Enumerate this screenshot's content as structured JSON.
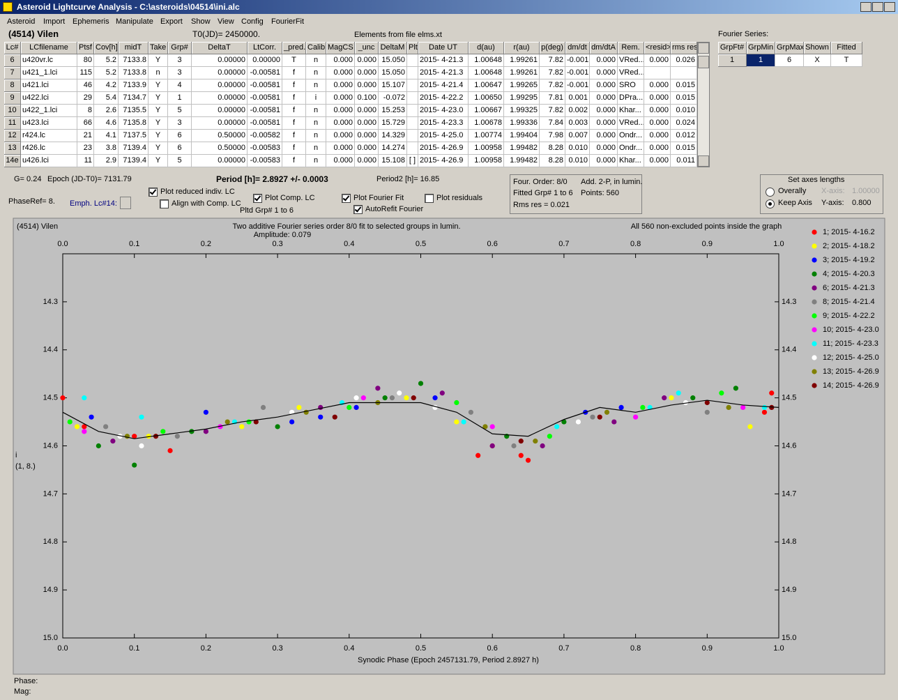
{
  "window_title": "Asteroid Lightcurve Analysis - C:\\asteroids\\04514\\ini.alc",
  "menu": [
    "Asteroid",
    "Import",
    "Ephemeris",
    "Manipulate",
    "Export",
    "Show",
    "View",
    "Config",
    "FourierFit"
  ],
  "header": {
    "asteroid": "(4514) Vilen",
    "t0": "T0(JD)= 2450000.",
    "elements": "Elements from file elms.xt",
    "fourier_label": "Fourier Series:"
  },
  "table": {
    "columns": [
      "Lc#",
      "LCfilename",
      "Ptsf",
      "Cov[h]",
      "midT",
      "Take",
      "Grp#",
      "DeltaT",
      "LtCorr.",
      "_pred.",
      "Calib.",
      "MagCS",
      "_unc",
      "DeltaM",
      "Plt",
      "Date UT",
      "d(au)",
      "r(au)",
      "p(deg)",
      "dm/dt",
      "dm/dtA",
      "Rem.",
      "<resid>",
      "rms res"
    ],
    "rows": [
      [
        "6",
        "u420vr.lc",
        "80",
        "5.2",
        "7133.8",
        "Y",
        "3",
        "0.00000",
        "0.00000",
        "T",
        "n",
        "0.000",
        "0.000",
        "15.050",
        null,
        "2015- 4-21.3",
        "1.00648",
        "1.99261",
        "7.82",
        "-0.001",
        "0.000",
        "VRed...",
        "0.000",
        "0.026"
      ],
      [
        "7",
        "u421_1.lci",
        "115",
        "5.2",
        "7133.8",
        "n",
        "3",
        "0.00000",
        "-0.00581",
        "f",
        "n",
        "0.000",
        "0.000",
        "15.050",
        null,
        "2015- 4-21.3",
        "1.00648",
        "1.99261",
        "7.82",
        "-0.001",
        "0.000",
        "VRed...",
        null,
        null
      ],
      [
        "8",
        "u421.lci",
        "46",
        "4.2",
        "7133.9",
        "Y",
        "4",
        "0.00000",
        "-0.00581",
        "f",
        "n",
        "0.000",
        "0.000",
        "15.107",
        null,
        "2015- 4-21.4",
        "1.00647",
        "1.99265",
        "7.82",
        "-0.001",
        "0.000",
        "SRO",
        "0.000",
        "0.015"
      ],
      [
        "9",
        "u422.lci",
        "29",
        "5.4",
        "7134.7",
        "Y",
        "1",
        "0.00000",
        "-0.00581",
        "f",
        "i",
        "0.000",
        "0.100",
        "-0.072",
        null,
        "2015- 4-22.2",
        "1.00650",
        "1.99295",
        "7.81",
        "0.001",
        "0.000",
        "DPra...",
        "0.000",
        "0.015"
      ],
      [
        "10",
        "u422_1.lci",
        "8",
        "2.6",
        "7135.5",
        "Y",
        "5",
        "0.00000",
        "-0.00581",
        "f",
        "n",
        "0.000",
        "0.000",
        "15.253",
        null,
        "2015- 4-23.0",
        "1.00667",
        "1.99325",
        "7.82",
        "0.002",
        "0.000",
        "Khar...",
        "0.000",
        "0.010"
      ],
      [
        "11",
        "u423.lci",
        "66",
        "4.6",
        "7135.8",
        "Y",
        "3",
        "0.00000",
        "-0.00581",
        "f",
        "n",
        "0.000",
        "0.000",
        "15.729",
        null,
        "2015- 4-23.3",
        "1.00678",
        "1.99336",
        "7.84",
        "0.003",
        "0.000",
        "VRed...",
        "0.000",
        "0.024"
      ],
      [
        "12",
        "r424.lc",
        "21",
        "4.1",
        "7137.5",
        "Y",
        "6",
        "0.50000",
        "-0.00582",
        "f",
        "n",
        "0.000",
        "0.000",
        "14.329",
        null,
        "2015- 4-25.0",
        "1.00774",
        "1.99404",
        "7.98",
        "0.007",
        "0.000",
        "Ondr...",
        "0.000",
        "0.012"
      ],
      [
        "13",
        "r426.lc",
        "23",
        "3.8",
        "7139.4",
        "Y",
        "6",
        "0.50000",
        "-0.00583",
        "f",
        "n",
        "0.000",
        "0.000",
        "14.274",
        null,
        "2015- 4-26.9",
        "1.00958",
        "1.99482",
        "8.28",
        "0.010",
        "0.000",
        "Ondr...",
        "0.000",
        "0.015"
      ],
      [
        "14e",
        "u426.lci",
        "11",
        "2.9",
        "7139.4",
        "Y",
        "5",
        "0.00000",
        "-0.00583",
        "f",
        "n",
        "0.000",
        "0.000",
        "15.108",
        "[ ]",
        "2015- 4-26.9",
        "1.00958",
        "1.99482",
        "8.28",
        "0.010",
        "0.000",
        "Khar...",
        "0.000",
        "0.011"
      ]
    ]
  },
  "fourier_table": {
    "columns": [
      "GrpFt#",
      "GrpMin",
      "GrpMax",
      "Shown",
      "Fitted"
    ],
    "rows": [
      [
        "1",
        "1",
        "6",
        "X",
        "T"
      ]
    ]
  },
  "controls": {
    "g": "G= 0.24",
    "epoch": "Epoch (JD-T0)= 7131.79",
    "period": "Period [h]= 2.8927 +/- 0.0003",
    "period2": "Period2 [h]= 16.85",
    "phase_ref": "PhaseRef= 8.",
    "emph": "Emph. Lc#14:",
    "pltd_grp": "Pltd Grp#  1   to   6",
    "checkboxes": [
      {
        "label": "Plot reduced indiv. LC",
        "checked": true
      },
      {
        "label": "Align with Comp. LC",
        "checked": false
      },
      {
        "label": "Plot Comp. LC",
        "checked": true
      },
      {
        "label": "Plot Fourier Fit",
        "checked": true
      },
      {
        "label": "AutoRefit Fourier",
        "checked": true
      },
      {
        "label": "Plot residuals",
        "checked": false
      }
    ],
    "info": [
      "Four. Order:  8/0",
      "Add. 2-P, in lumin.",
      "Fitted Grp# 1 to 6",
      "Points: 560",
      "Rms res     = 0.021"
    ],
    "axes_box": {
      "title": "Set axes lengths",
      "radios": [
        {
          "label": "Overally",
          "selected": false
        },
        {
          "label": "Keep Axis",
          "selected": true
        }
      ],
      "x_label": "X-axis:",
      "x_value": "1.00000",
      "y_label": "Y-axis:",
      "y_value": "0.800"
    }
  },
  "chart_data": {
    "type": "scatter",
    "title_left": "(4514) Vilen",
    "title": "Two additive Fourier series order 8/0 fit to selected groups in lumin.",
    "subtitle": "Amplitude: 0.079",
    "title_right": "All 560 non-excluded points inside the graph",
    "ylabel": [
      "i",
      "(1, 8.)"
    ],
    "xlabel": "Synodic Phase (Epoch 2457131.79, Period 2.8927 h)",
    "xlim": [
      0,
      1
    ],
    "ylim": [
      14.2,
      15.0
    ],
    "y_inverted": true,
    "xticks": [
      {
        "value": 0,
        "label": "0.0"
      },
      0.1,
      0.2,
      0.3,
      0.4,
      0.5,
      0.6,
      0.7,
      0.8,
      0.9,
      {
        "value": 1,
        "label": "1.0"
      }
    ],
    "yticks": [
      14.3,
      14.4,
      14.5,
      14.6,
      14.7,
      14.8,
      14.9,
      {
        "value": 15,
        "label": "15.0"
      }
    ],
    "legend": "right",
    "fit_curve": {
      "color": "#000000",
      "x": [
        0,
        0.05,
        0.1,
        0.15,
        0.2,
        0.25,
        0.3,
        0.35,
        0.4,
        0.45,
        0.5,
        0.55,
        0.6,
        0.65,
        0.7,
        0.75,
        0.8,
        0.85,
        0.9,
        0.95,
        1
      ],
      "values": [
        14.53,
        14.57,
        14.585,
        14.575,
        14.565,
        14.55,
        14.54,
        14.525,
        14.51,
        14.51,
        14.51,
        14.53,
        14.575,
        14.58,
        14.545,
        14.52,
        14.53,
        14.515,
        14.505,
        14.515,
        14.52
      ]
    },
    "series": [
      {
        "name": "1; 2015- 4-16.2",
        "color": "#ff0000",
        "x": [
          0.0,
          0.03,
          0.1,
          0.15,
          0.58,
          0.6,
          0.64,
          0.65,
          0.98,
          0.99
        ],
        "values": [
          14.5,
          14.56,
          14.58,
          14.61,
          14.62,
          14.6,
          14.62,
          14.63,
          14.53,
          14.49
        ]
      },
      {
        "name": "2; 2015- 4-18.2",
        "color": "#ffff00",
        "x": [
          0.02,
          0.12,
          0.25,
          0.33,
          0.48,
          0.55,
          0.85,
          0.96
        ],
        "values": [
          14.56,
          14.58,
          14.56,
          14.52,
          14.5,
          14.55,
          14.5,
          14.56
        ]
      },
      {
        "name": "3; 2015- 4-19.2",
        "color": "#0000ff",
        "x": [
          0.04,
          0.2,
          0.32,
          0.36,
          0.41,
          0.52,
          0.73,
          0.78
        ],
        "values": [
          14.54,
          14.53,
          14.55,
          14.54,
          14.52,
          14.5,
          14.53,
          14.52
        ]
      },
      {
        "name": "4; 2015- 4-20.3",
        "color": "#008000",
        "x": [
          0.05,
          0.1,
          0.18,
          0.3,
          0.45,
          0.5,
          0.62,
          0.7,
          0.88,
          0.94
        ],
        "values": [
          14.6,
          14.64,
          14.57,
          14.56,
          14.5,
          14.47,
          14.58,
          14.55,
          14.5,
          14.48
        ]
      },
      {
        "name": "6; 2015- 4-21.3",
        "color": "#800080",
        "x": [
          0.07,
          0.2,
          0.36,
          0.44,
          0.53,
          0.6,
          0.67,
          0.77,
          0.84
        ],
        "values": [
          14.59,
          14.57,
          14.52,
          14.48,
          14.49,
          14.6,
          14.6,
          14.55,
          14.5
        ]
      },
      {
        "name": "8; 2015- 4-21.4",
        "color": "#808080",
        "x": [
          0.06,
          0.16,
          0.28,
          0.46,
          0.57,
          0.63,
          0.74,
          0.9
        ],
        "values": [
          14.56,
          14.58,
          14.52,
          14.5,
          14.53,
          14.6,
          14.54,
          14.53
        ]
      },
      {
        "name": "9; 2015- 4-22.2",
        "color": "#00ff00",
        "x": [
          0.01,
          0.14,
          0.26,
          0.4,
          0.55,
          0.68,
          0.81,
          0.92
        ],
        "values": [
          14.55,
          14.57,
          14.55,
          14.52,
          14.51,
          14.58,
          14.52,
          14.49
        ]
      },
      {
        "name": "10; 2015- 4-23.0",
        "color": "#ff00ff",
        "x": [
          0.03,
          0.22,
          0.42,
          0.6,
          0.8,
          0.95
        ],
        "values": [
          14.57,
          14.56,
          14.5,
          14.56,
          14.54,
          14.52
        ]
      },
      {
        "name": "11; 2015- 4-23.3",
        "color": "#00ffff",
        "x": [
          0.03,
          0.11,
          0.24,
          0.39,
          0.56,
          0.69,
          0.82,
          0.86,
          0.98
        ],
        "values": [
          14.5,
          14.54,
          14.55,
          14.51,
          14.55,
          14.56,
          14.52,
          14.49,
          14.52
        ]
      },
      {
        "name": "12; 2015- 4-25.0",
        "color": "#ffffff",
        "x": [
          0.08,
          0.11,
          0.32,
          0.41,
          0.47,
          0.52,
          0.72,
          0.87
        ],
        "values": [
          14.58,
          14.6,
          14.53,
          14.5,
          14.49,
          14.52,
          14.55,
          14.51
        ]
      },
      {
        "name": "13; 2015- 4-26.9",
        "color": "#808000",
        "x": [
          0.09,
          0.23,
          0.34,
          0.44,
          0.59,
          0.66,
          0.76,
          0.93
        ],
        "values": [
          14.58,
          14.55,
          14.53,
          14.51,
          14.56,
          14.59,
          14.53,
          14.52
        ]
      },
      {
        "name": "14; 2015- 4-26.9",
        "color": "#800000",
        "x": [
          0.13,
          0.27,
          0.38,
          0.49,
          0.64,
          0.75,
          0.9,
          0.99
        ],
        "values": [
          14.58,
          14.55,
          14.54,
          14.5,
          14.59,
          14.54,
          14.51,
          14.52
        ]
      }
    ]
  },
  "footer": {
    "phase": "Phase:",
    "mag": "Mag:"
  }
}
